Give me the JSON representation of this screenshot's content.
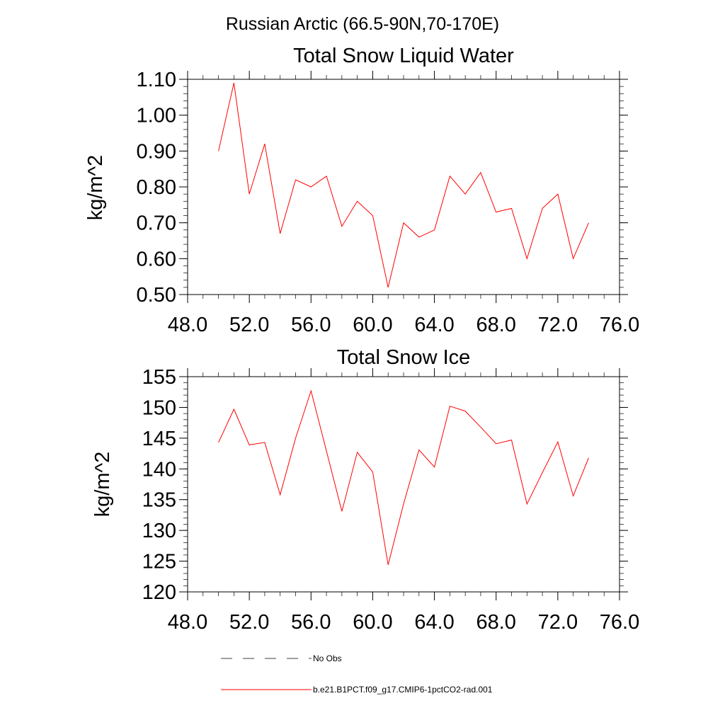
{
  "page": {
    "title": "Russian Arctic (66.5-90N,70-170E)"
  },
  "legend": {
    "items": [
      {
        "label": "No Obs",
        "color": "#000000",
        "dash": true
      },
      {
        "label": "b.e21.B1PCT.f09_g17.CMIP6-1pctCO2-rad.001",
        "color": "#ff0000",
        "dash": false
      }
    ]
  },
  "chart_data": [
    {
      "type": "line",
      "title": "Total Snow Liquid Water",
      "xlabel": "",
      "ylabel": "kg/m^2",
      "xlim": [
        48,
        76
      ],
      "ylim": [
        0.5,
        1.1
      ],
      "xticks": [
        48,
        52,
        56,
        60,
        64,
        68,
        72,
        76
      ],
      "xtick_labels": [
        "48.0",
        "52.0",
        "56.0",
        "60.0",
        "64.0",
        "68.0",
        "72.0",
        "76.0"
      ],
      "yticks": [
        0.5,
        0.6,
        0.7,
        0.8,
        0.9,
        1.0,
        1.1
      ],
      "ytick_labels": [
        "0.50",
        "0.60",
        "0.70",
        "0.80",
        "0.90",
        "1.00",
        "1.10"
      ],
      "grid": false,
      "series": [
        {
          "name": "b.e21.B1PCT.f09_g17.CMIP6-1pctCO2-rad.001",
          "color": "#ff0000",
          "x": [
            50,
            51,
            52,
            53,
            54,
            55,
            56,
            57,
            58,
            59,
            60,
            61,
            62,
            63,
            64,
            65,
            66,
            67,
            68,
            69,
            70,
            71,
            72,
            73,
            74
          ],
          "y": [
            0.9,
            1.09,
            0.78,
            0.92,
            0.67,
            0.82,
            0.8,
            0.83,
            0.69,
            0.76,
            0.72,
            0.52,
            0.7,
            0.66,
            0.68,
            0.83,
            0.78,
            0.84,
            0.73,
            0.74,
            0.6,
            0.74,
            0.78,
            0.6,
            0.7
          ]
        }
      ]
    },
    {
      "type": "line",
      "title": "Total Snow Ice",
      "xlabel": "",
      "ylabel": "kg/m^2",
      "xlim": [
        48,
        76
      ],
      "ylim": [
        120,
        155
      ],
      "xticks": [
        48,
        52,
        56,
        60,
        64,
        68,
        72,
        76
      ],
      "xtick_labels": [
        "48.0",
        "52.0",
        "56.0",
        "60.0",
        "64.0",
        "68.0",
        "72.0",
        "76.0"
      ],
      "yticks": [
        120,
        125,
        130,
        135,
        140,
        145,
        150,
        155
      ],
      "ytick_labels": [
        "120",
        "125",
        "130",
        "135",
        "140",
        "145",
        "150",
        "155"
      ],
      "grid": false,
      "series": [
        {
          "name": "b.e21.B1PCT.f09_g17.CMIP6-1pctCO2-rad.001",
          "color": "#ff0000",
          "x": [
            50,
            51,
            52,
            53,
            54,
            55,
            56,
            57,
            58,
            59,
            60,
            61,
            62,
            63,
            64,
            65,
            66,
            67,
            68,
            69,
            70,
            71,
            72,
            73,
            74
          ],
          "y": [
            144.3,
            149.7,
            143.9,
            144.3,
            135.8,
            145.0,
            152.7,
            142.9,
            133.1,
            142.7,
            139.5,
            124.4,
            134.3,
            143.1,
            140.3,
            150.2,
            149.4,
            146.8,
            144.1,
            144.7,
            134.3,
            139.4,
            144.4,
            135.6,
            141.8
          ]
        }
      ]
    }
  ]
}
